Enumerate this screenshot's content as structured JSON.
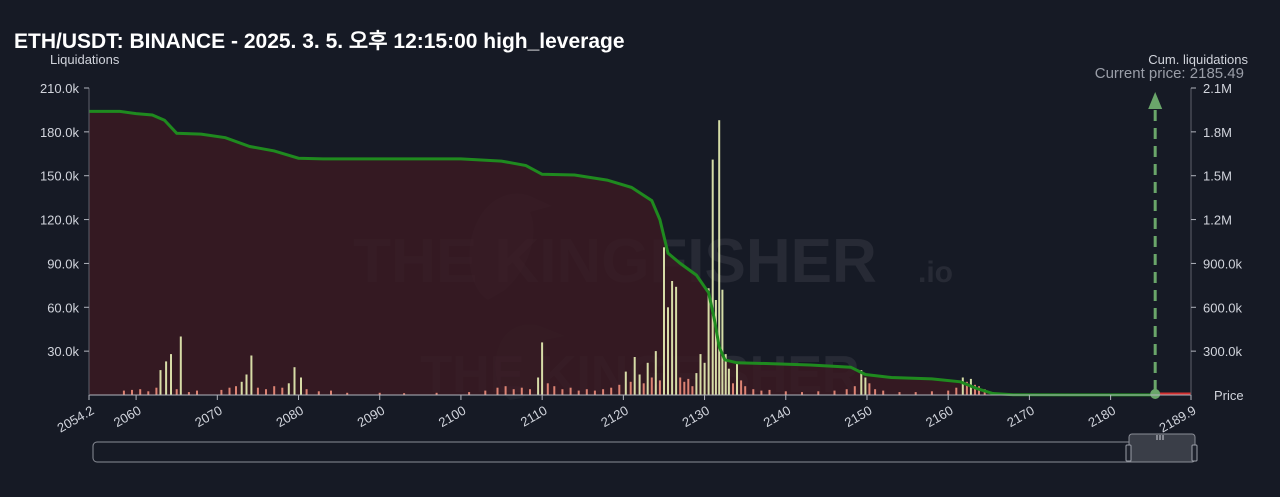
{
  "title": "ETH/USDT: BINANCE - 2025. 3. 5. 오후 12:15:00 high_leverage",
  "left_axis_title": "Liquidations",
  "right_axis_title": "Cum. liquidations",
  "current_price_label": "Current price: 2185.49",
  "price_axis_label": "Price",
  "watermark": {
    "brand": "THE KINGFISHER",
    "suffix": ".io"
  },
  "colors": {
    "background": "#161a25",
    "cum_line": "#1f8a1f",
    "cum_fill": "#3a1a22",
    "bar_long": "#e9f2b6",
    "bar_short": "#f08f7c",
    "current_price": "#6aa66a",
    "price_segment": "#d32f2f"
  },
  "chart_data": {
    "type": "bar",
    "xlim": [
      2054.2,
      2189.9
    ],
    "x_ticks": [
      2054.2,
      2060,
      2070,
      2080,
      2090,
      2100,
      2110,
      2120,
      2130,
      2140,
      2150,
      2160,
      2170,
      2180,
      2189.9
    ],
    "x_tick_labels": [
      "2054.2",
      "2060",
      "2070",
      "2080",
      "2090",
      "2100",
      "2110",
      "2120",
      "2130",
      "2140",
      "2150",
      "2160",
      "2170",
      "2180",
      "2189.9"
    ],
    "ylim_left": [
      0,
      210000
    ],
    "y_ticks_left": [
      30000,
      60000,
      90000,
      120000,
      150000,
      180000,
      210000
    ],
    "y_tick_labels_left": [
      "30.0k",
      "60.0k",
      "90.0k",
      "120.0k",
      "150.0k",
      "180.0k",
      "210.0k"
    ],
    "ylim_right": [
      0,
      2100000
    ],
    "y_ticks_right": [
      300000,
      600000,
      900000,
      1200000,
      1500000,
      1800000,
      2100000
    ],
    "y_tick_labels_right": [
      "300.0k",
      "600.0k",
      "900.0k",
      "1.2M",
      "1.5M",
      "1.8M",
      "2.1M"
    ],
    "current_price": 2185.49,
    "bars": [
      {
        "x": 2058.5,
        "y": 3000,
        "kind": "short"
      },
      {
        "x": 2059.5,
        "y": 3500,
        "kind": "short"
      },
      {
        "x": 2060.5,
        "y": 4000,
        "kind": "short"
      },
      {
        "x": 2061.5,
        "y": 2500,
        "kind": "short"
      },
      {
        "x": 2062.5,
        "y": 5000,
        "kind": "short"
      },
      {
        "x": 2063.0,
        "y": 17000,
        "kind": "long"
      },
      {
        "x": 2063.7,
        "y": 23000,
        "kind": "long"
      },
      {
        "x": 2064.3,
        "y": 28000,
        "kind": "long"
      },
      {
        "x": 2065.0,
        "y": 4000,
        "kind": "short"
      },
      {
        "x": 2065.5,
        "y": 40000,
        "kind": "long"
      },
      {
        "x": 2066.5,
        "y": 2000,
        "kind": "short"
      },
      {
        "x": 2067.5,
        "y": 3000,
        "kind": "short"
      },
      {
        "x": 2070.5,
        "y": 3500,
        "kind": "short"
      },
      {
        "x": 2071.5,
        "y": 5000,
        "kind": "short"
      },
      {
        "x": 2072.3,
        "y": 6000,
        "kind": "short"
      },
      {
        "x": 2073.0,
        "y": 9000,
        "kind": "long"
      },
      {
        "x": 2073.6,
        "y": 14000,
        "kind": "long"
      },
      {
        "x": 2074.2,
        "y": 27000,
        "kind": "long"
      },
      {
        "x": 2075.0,
        "y": 5000,
        "kind": "short"
      },
      {
        "x": 2076.0,
        "y": 4000,
        "kind": "short"
      },
      {
        "x": 2077.0,
        "y": 6000,
        "kind": "short"
      },
      {
        "x": 2078.0,
        "y": 5000,
        "kind": "short"
      },
      {
        "x": 2078.8,
        "y": 8000,
        "kind": "long"
      },
      {
        "x": 2079.5,
        "y": 19000,
        "kind": "long"
      },
      {
        "x": 2080.3,
        "y": 12000,
        "kind": "long"
      },
      {
        "x": 2081.0,
        "y": 4000,
        "kind": "short"
      },
      {
        "x": 2082.5,
        "y": 2500,
        "kind": "short"
      },
      {
        "x": 2084.0,
        "y": 3000,
        "kind": "short"
      },
      {
        "x": 2086.0,
        "y": 1500,
        "kind": "short"
      },
      {
        "x": 2090.0,
        "y": 1500,
        "kind": "short"
      },
      {
        "x": 2093.0,
        "y": 1200,
        "kind": "short"
      },
      {
        "x": 2097.0,
        "y": 1500,
        "kind": "short"
      },
      {
        "x": 2101.0,
        "y": 2000,
        "kind": "short"
      },
      {
        "x": 2103.0,
        "y": 3000,
        "kind": "short"
      },
      {
        "x": 2104.5,
        "y": 5000,
        "kind": "short"
      },
      {
        "x": 2105.5,
        "y": 6000,
        "kind": "short"
      },
      {
        "x": 2106.5,
        "y": 4000,
        "kind": "short"
      },
      {
        "x": 2107.5,
        "y": 5000,
        "kind": "short"
      },
      {
        "x": 2108.5,
        "y": 4000,
        "kind": "short"
      },
      {
        "x": 2109.5,
        "y": 12000,
        "kind": "long"
      },
      {
        "x": 2110.0,
        "y": 36000,
        "kind": "long"
      },
      {
        "x": 2110.7,
        "y": 8000,
        "kind": "short"
      },
      {
        "x": 2111.5,
        "y": 6000,
        "kind": "short"
      },
      {
        "x": 2112.5,
        "y": 4000,
        "kind": "short"
      },
      {
        "x": 2113.5,
        "y": 5000,
        "kind": "short"
      },
      {
        "x": 2114.5,
        "y": 3000,
        "kind": "short"
      },
      {
        "x": 2115.5,
        "y": 4000,
        "kind": "short"
      },
      {
        "x": 2116.5,
        "y": 3000,
        "kind": "short"
      },
      {
        "x": 2117.5,
        "y": 4000,
        "kind": "short"
      },
      {
        "x": 2118.5,
        "y": 5000,
        "kind": "short"
      },
      {
        "x": 2119.5,
        "y": 7000,
        "kind": "short"
      },
      {
        "x": 2120.3,
        "y": 16000,
        "kind": "long"
      },
      {
        "x": 2120.9,
        "y": 9000,
        "kind": "short"
      },
      {
        "x": 2121.4,
        "y": 26000,
        "kind": "long"
      },
      {
        "x": 2122.0,
        "y": 14000,
        "kind": "long"
      },
      {
        "x": 2122.5,
        "y": 8000,
        "kind": "short"
      },
      {
        "x": 2123.0,
        "y": 22000,
        "kind": "long"
      },
      {
        "x": 2123.5,
        "y": 12000,
        "kind": "short"
      },
      {
        "x": 2124.0,
        "y": 30000,
        "kind": "long"
      },
      {
        "x": 2124.5,
        "y": 10000,
        "kind": "short"
      },
      {
        "x": 2125.0,
        "y": 101000,
        "kind": "long"
      },
      {
        "x": 2125.5,
        "y": 60000,
        "kind": "long"
      },
      {
        "x": 2126.0,
        "y": 78000,
        "kind": "long"
      },
      {
        "x": 2126.5,
        "y": 74000,
        "kind": "long"
      },
      {
        "x": 2127.0,
        "y": 12000,
        "kind": "short"
      },
      {
        "x": 2127.5,
        "y": 9000,
        "kind": "short"
      },
      {
        "x": 2128.0,
        "y": 11000,
        "kind": "short"
      },
      {
        "x": 2128.5,
        "y": 6000,
        "kind": "short"
      },
      {
        "x": 2129.0,
        "y": 15000,
        "kind": "long"
      },
      {
        "x": 2129.5,
        "y": 28000,
        "kind": "long"
      },
      {
        "x": 2130.0,
        "y": 22000,
        "kind": "long"
      },
      {
        "x": 2130.5,
        "y": 73000,
        "kind": "long"
      },
      {
        "x": 2131.0,
        "y": 161000,
        "kind": "long"
      },
      {
        "x": 2131.4,
        "y": 65000,
        "kind": "long"
      },
      {
        "x": 2131.8,
        "y": 188000,
        "kind": "long"
      },
      {
        "x": 2132.2,
        "y": 72000,
        "kind": "long"
      },
      {
        "x": 2132.6,
        "y": 28000,
        "kind": "long"
      },
      {
        "x": 2133.0,
        "y": 18000,
        "kind": "long"
      },
      {
        "x": 2133.5,
        "y": 8000,
        "kind": "short"
      },
      {
        "x": 2134.0,
        "y": 22000,
        "kind": "long"
      },
      {
        "x": 2134.5,
        "y": 10000,
        "kind": "short"
      },
      {
        "x": 2135.0,
        "y": 6000,
        "kind": "short"
      },
      {
        "x": 2136.0,
        "y": 4000,
        "kind": "short"
      },
      {
        "x": 2137.0,
        "y": 3000,
        "kind": "short"
      },
      {
        "x": 2138.0,
        "y": 3500,
        "kind": "short"
      },
      {
        "x": 2140.0,
        "y": 2500,
        "kind": "short"
      },
      {
        "x": 2142.0,
        "y": 2000,
        "kind": "short"
      },
      {
        "x": 2144.0,
        "y": 2500,
        "kind": "short"
      },
      {
        "x": 2146.0,
        "y": 3000,
        "kind": "short"
      },
      {
        "x": 2147.5,
        "y": 4000,
        "kind": "short"
      },
      {
        "x": 2148.5,
        "y": 6000,
        "kind": "short"
      },
      {
        "x": 2149.3,
        "y": 17000,
        "kind": "long"
      },
      {
        "x": 2149.8,
        "y": 12000,
        "kind": "long"
      },
      {
        "x": 2150.3,
        "y": 8000,
        "kind": "short"
      },
      {
        "x": 2151.0,
        "y": 4000,
        "kind": "short"
      },
      {
        "x": 2152.0,
        "y": 3000,
        "kind": "short"
      },
      {
        "x": 2154.0,
        "y": 2000,
        "kind": "short"
      },
      {
        "x": 2156.0,
        "y": 2000,
        "kind": "short"
      },
      {
        "x": 2158.0,
        "y": 2500,
        "kind": "short"
      },
      {
        "x": 2160.0,
        "y": 3000,
        "kind": "short"
      },
      {
        "x": 2161.0,
        "y": 5000,
        "kind": "short"
      },
      {
        "x": 2161.8,
        "y": 12000,
        "kind": "long"
      },
      {
        "x": 2162.3,
        "y": 9000,
        "kind": "short"
      },
      {
        "x": 2162.8,
        "y": 11000,
        "kind": "long"
      },
      {
        "x": 2163.3,
        "y": 7000,
        "kind": "short"
      },
      {
        "x": 2163.8,
        "y": 6000,
        "kind": "short"
      },
      {
        "x": 2164.5,
        "y": 4000,
        "kind": "short"
      },
      {
        "x": 2165.5,
        "y": 2000,
        "kind": "short"
      }
    ],
    "cumulative": [
      {
        "x": 2054.2,
        "y": 1940000
      },
      {
        "x": 2058.0,
        "y": 1940000
      },
      {
        "x": 2060.0,
        "y": 1925000
      },
      {
        "x": 2062.0,
        "y": 1915000
      },
      {
        "x": 2063.5,
        "y": 1880000
      },
      {
        "x": 2065.0,
        "y": 1790000
      },
      {
        "x": 2068.0,
        "y": 1785000
      },
      {
        "x": 2071.0,
        "y": 1760000
      },
      {
        "x": 2074.0,
        "y": 1700000
      },
      {
        "x": 2077.0,
        "y": 1670000
      },
      {
        "x": 2080.0,
        "y": 1620000
      },
      {
        "x": 2083.0,
        "y": 1615000
      },
      {
        "x": 2090.0,
        "y": 1615000
      },
      {
        "x": 2100.0,
        "y": 1615000
      },
      {
        "x": 2105.0,
        "y": 1600000
      },
      {
        "x": 2108.0,
        "y": 1570000
      },
      {
        "x": 2110.0,
        "y": 1510000
      },
      {
        "x": 2114.0,
        "y": 1505000
      },
      {
        "x": 2118.0,
        "y": 1470000
      },
      {
        "x": 2121.0,
        "y": 1420000
      },
      {
        "x": 2123.5,
        "y": 1330000
      },
      {
        "x": 2124.5,
        "y": 1200000
      },
      {
        "x": 2125.5,
        "y": 970000
      },
      {
        "x": 2127.0,
        "y": 900000
      },
      {
        "x": 2129.0,
        "y": 820000
      },
      {
        "x": 2130.5,
        "y": 700000
      },
      {
        "x": 2131.2,
        "y": 520000
      },
      {
        "x": 2131.8,
        "y": 330000
      },
      {
        "x": 2132.5,
        "y": 240000
      },
      {
        "x": 2134.0,
        "y": 220000
      },
      {
        "x": 2138.0,
        "y": 215000
      },
      {
        "x": 2143.0,
        "y": 205000
      },
      {
        "x": 2148.0,
        "y": 190000
      },
      {
        "x": 2149.8,
        "y": 140000
      },
      {
        "x": 2153.0,
        "y": 120000
      },
      {
        "x": 2158.0,
        "y": 110000
      },
      {
        "x": 2161.5,
        "y": 90000
      },
      {
        "x": 2163.5,
        "y": 45000
      },
      {
        "x": 2165.5,
        "y": 10000
      },
      {
        "x": 2168.0,
        "y": 2000
      },
      {
        "x": 2175.0,
        "y": 1000
      },
      {
        "x": 2185.49,
        "y": 1000
      }
    ],
    "price_segment": [
      2185.49,
      2189.9
    ]
  }
}
